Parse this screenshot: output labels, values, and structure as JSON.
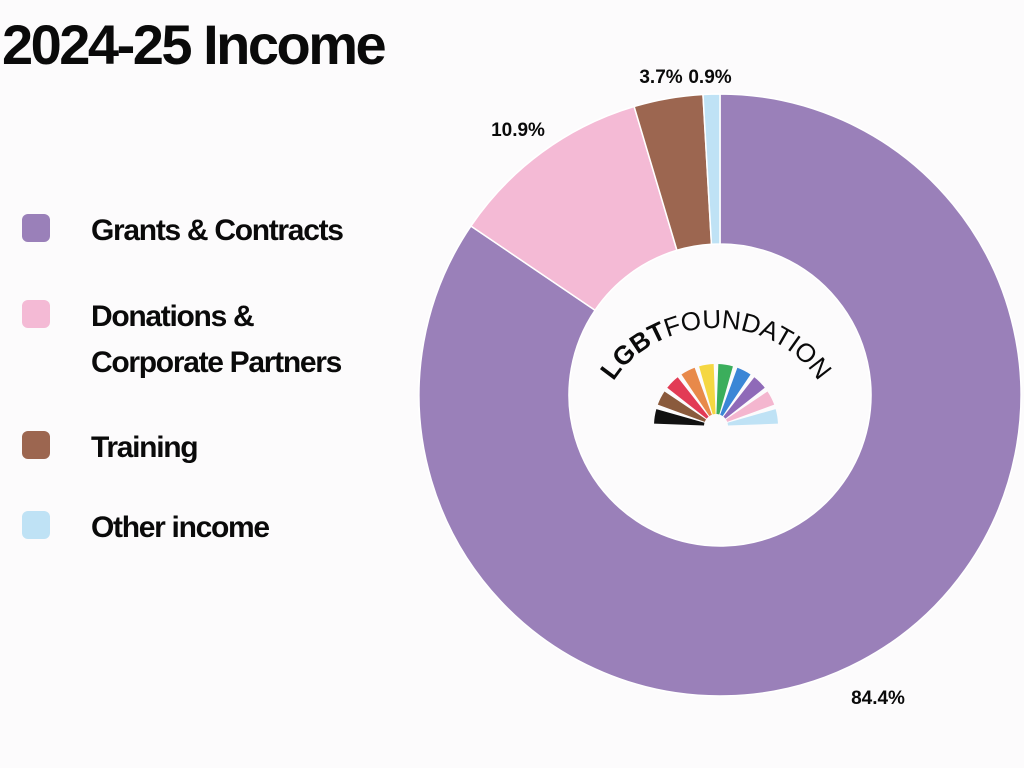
{
  "title": "2024-25 Income",
  "legend_items": [
    {
      "label": "Grants & Contracts",
      "color": "#9a80b9"
    },
    {
      "label": "Donations &\nCorporate Partners",
      "color": "#f4bad5"
    },
    {
      "label": "Training",
      "color": "#9c6650"
    },
    {
      "label": "Other income",
      "color": "#bfe2f5"
    }
  ],
  "logo": {
    "bold": "LGBT",
    "light": "FOUNDATION"
  },
  "chart_data": {
    "type": "pie",
    "title": "2024-25 Income",
    "categories": [
      "Grants & Contracts",
      "Donations & Corporate Partners",
      "Training",
      "Other income"
    ],
    "values": [
      84.4,
      10.9,
      3.7,
      0.9
    ],
    "value_labels": [
      "84.4%",
      "10.9%",
      "3.7%",
      "0.9%"
    ],
    "colors": [
      "#9a80b9",
      "#f4bad5",
      "#9c6650",
      "#bfe2f5"
    ],
    "donut": true,
    "legend_placement": "left"
  }
}
